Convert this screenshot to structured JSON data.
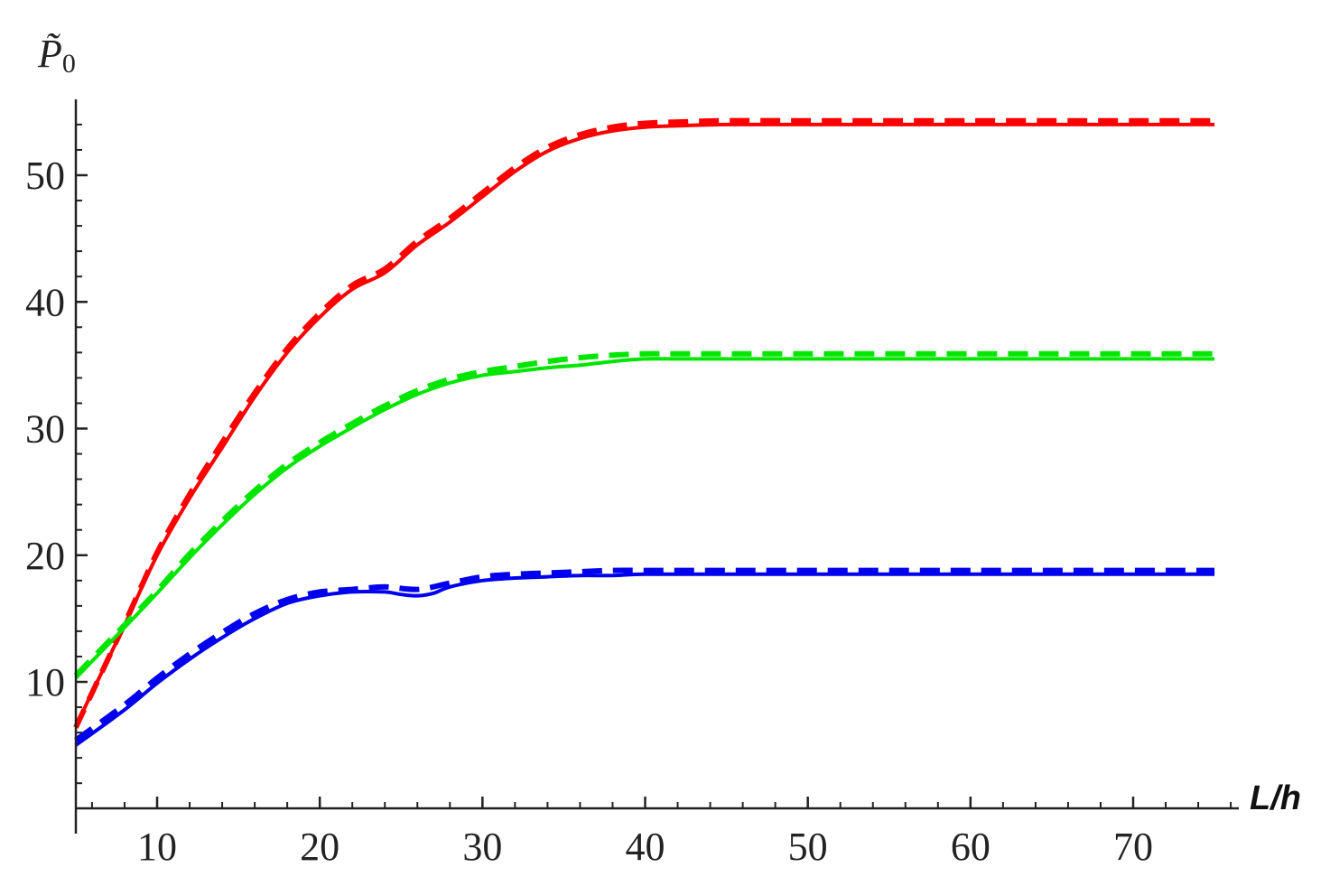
{
  "chart_data": {
    "type": "line",
    "xlabel": "L/h",
    "ylabel": "P̃",
    "ylabel_subscript": "0",
    "xlim": [
      5,
      76
    ],
    "ylim": [
      0,
      56
    ],
    "xticks": [
      10,
      20,
      30,
      40,
      50,
      60,
      70
    ],
    "xtick_labels": [
      "10",
      "20",
      "30",
      "40",
      "50",
      "60",
      "70"
    ],
    "yticks": [
      10,
      20,
      30,
      40,
      50
    ],
    "ytick_labels": [
      "10",
      "20",
      "30",
      "40",
      "50"
    ],
    "x_minor_step": 2,
    "y_minor_step": 2,
    "grid": false,
    "legend": "none",
    "series": [
      {
        "color": "#ff0000",
        "style": "solid",
        "x": [
          5,
          8,
          10,
          12,
          14,
          16,
          18,
          20,
          22,
          24,
          26,
          28,
          30,
          32,
          34,
          36,
          38,
          40,
          42,
          45,
          50,
          60,
          70,
          75
        ],
        "values": [
          6.5,
          14.5,
          20,
          24.5,
          28.5,
          32.5,
          36,
          38.8,
          41,
          42.3,
          44.5,
          46.3,
          48.3,
          50.3,
          51.9,
          52.9,
          53.5,
          53.8,
          53.9,
          54,
          54,
          54,
          54,
          54
        ]
      },
      {
        "color": "#ff0000",
        "style": "dashed",
        "x": [
          5,
          8,
          10,
          12,
          14,
          16,
          18,
          20,
          22,
          24,
          26,
          28,
          30,
          32,
          34,
          36,
          38,
          40,
          42,
          45,
          50,
          60,
          70,
          75
        ],
        "values": [
          6.4,
          14.6,
          20.2,
          24.8,
          28.9,
          32.8,
          36.3,
          39.1,
          41.3,
          42.6,
          44.8,
          46.6,
          48.6,
          50.6,
          52.2,
          53.2,
          53.8,
          54.1,
          54.2,
          54.3,
          54.3,
          54.3,
          54.3,
          54.3
        ]
      },
      {
        "color": "#00e600",
        "style": "solid",
        "x": [
          5,
          8,
          10,
          12,
          14,
          16,
          18,
          20,
          22,
          24,
          26,
          28,
          30,
          32,
          34,
          36,
          38,
          40,
          42,
          45,
          50,
          60,
          70,
          75
        ],
        "values": [
          10.3,
          14.3,
          17,
          19.8,
          22.4,
          24.8,
          26.9,
          28.6,
          30.1,
          31.5,
          32.7,
          33.6,
          34.2,
          34.5,
          34.8,
          35,
          35.3,
          35.5,
          35.5,
          35.5,
          35.5,
          35.5,
          35.5,
          35.5
        ]
      },
      {
        "color": "#00e600",
        "style": "dashed",
        "x": [
          5,
          8,
          10,
          12,
          14,
          16,
          18,
          20,
          22,
          24,
          26,
          28,
          30,
          32,
          34,
          36,
          38,
          40,
          42,
          45,
          50,
          60,
          70,
          75
        ],
        "values": [
          10.5,
          14.5,
          17.2,
          20.1,
          22.7,
          25.1,
          27.2,
          28.9,
          30.4,
          31.8,
          33,
          33.9,
          34.5,
          34.9,
          35.3,
          35.6,
          35.8,
          35.9,
          35.9,
          35.9,
          35.9,
          35.9,
          35.9,
          35.9
        ]
      },
      {
        "color": "#0000ee",
        "style": "solid",
        "x": [
          5,
          8,
          10,
          12,
          14,
          16,
          18,
          20,
          22,
          24,
          25,
          26,
          27,
          28,
          30,
          32,
          34,
          36,
          38,
          40,
          45,
          50,
          60,
          70,
          75
        ],
        "values": [
          5,
          7.8,
          9.9,
          11.8,
          13.5,
          15,
          16.2,
          16.8,
          17.1,
          17.1,
          16.9,
          16.8,
          17,
          17.5,
          18,
          18.2,
          18.3,
          18.4,
          18.4,
          18.5,
          18.5,
          18.5,
          18.5,
          18.5,
          18.5
        ]
      },
      {
        "color": "#0000ee",
        "style": "dashed",
        "x": [
          5,
          8,
          10,
          12,
          14,
          16,
          18,
          20,
          22,
          24,
          26,
          28,
          30,
          32,
          34,
          36,
          38,
          40,
          45,
          50,
          60,
          70,
          75
        ],
        "values": [
          5.4,
          8.2,
          10.3,
          12.2,
          13.9,
          15.4,
          16.5,
          17.1,
          17.3,
          17.5,
          17.3,
          17.8,
          18.3,
          18.5,
          18.6,
          18.7,
          18.8,
          18.8,
          18.8,
          18.8,
          18.8,
          18.8,
          18.8
        ]
      }
    ]
  }
}
